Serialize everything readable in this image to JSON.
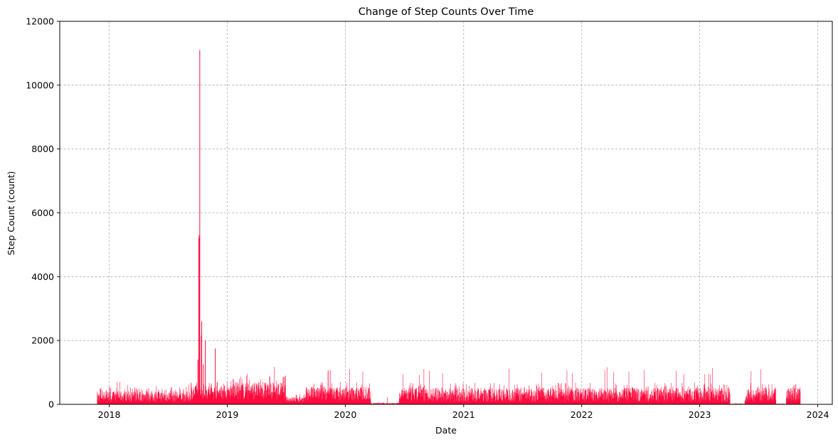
{
  "chart_data": {
    "type": "line",
    "title": "Change of Step Counts Over Time",
    "xlabel": "Date",
    "ylabel": "Step Count (count)",
    "xlim": [
      "2017-08-01",
      "2024-02-15"
    ],
    "ylim": [
      0,
      12000
    ],
    "xticks": [
      "2018",
      "2019",
      "2020",
      "2021",
      "2022",
      "2023",
      "2024"
    ],
    "yticks": [
      "0",
      "2000",
      "4000",
      "6000",
      "8000",
      "10000",
      "12000"
    ],
    "grid": true,
    "line_color": "#ff0a3c",
    "x_range": [
      "2017-11-25",
      "2023-11-08"
    ],
    "segments": [
      {
        "start": "2017-11-25",
        "end": "2018-09-10",
        "base": 80,
        "high": 420,
        "peak": 700
      },
      {
        "start": "2018-09-10",
        "end": "2019-01-15",
        "base": 150,
        "high": 600,
        "peak": 1000
      },
      {
        "start": "2019-01-15",
        "end": "2019-07-01",
        "base": 150,
        "high": 700,
        "peak": 1180
      },
      {
        "start": "2019-07-01",
        "end": "2019-09-01",
        "base": 60,
        "high": 250,
        "peak": 1000
      },
      {
        "start": "2019-09-01",
        "end": "2020-03-20",
        "base": 120,
        "high": 550,
        "peak": 1120
      },
      {
        "start": "2020-03-20",
        "end": "2020-06-15",
        "base": 10,
        "high": 50,
        "peak": 280
      },
      {
        "start": "2020-06-15",
        "end": "2023-11-08",
        "base": 80,
        "high": 520,
        "peak": 1180
      }
    ],
    "gaps": [
      {
        "start": "2023-04-05",
        "end": "2023-05-20"
      },
      {
        "start": "2023-08-25",
        "end": "2023-09-25"
      }
    ],
    "spikes": [
      {
        "date": "2018-10-08",
        "value": 11100
      },
      {
        "date": "2018-10-06",
        "value": 5300
      },
      {
        "date": "2018-10-05",
        "value": 5200
      },
      {
        "date": "2018-10-14",
        "value": 2600
      },
      {
        "date": "2018-10-13",
        "value": 2150
      },
      {
        "date": "2018-10-25",
        "value": 2000
      },
      {
        "date": "2018-11-25",
        "value": 1750
      },
      {
        "date": "2018-10-02",
        "value": 1400
      },
      {
        "date": "2018-10-19",
        "value": 1250
      }
    ]
  }
}
